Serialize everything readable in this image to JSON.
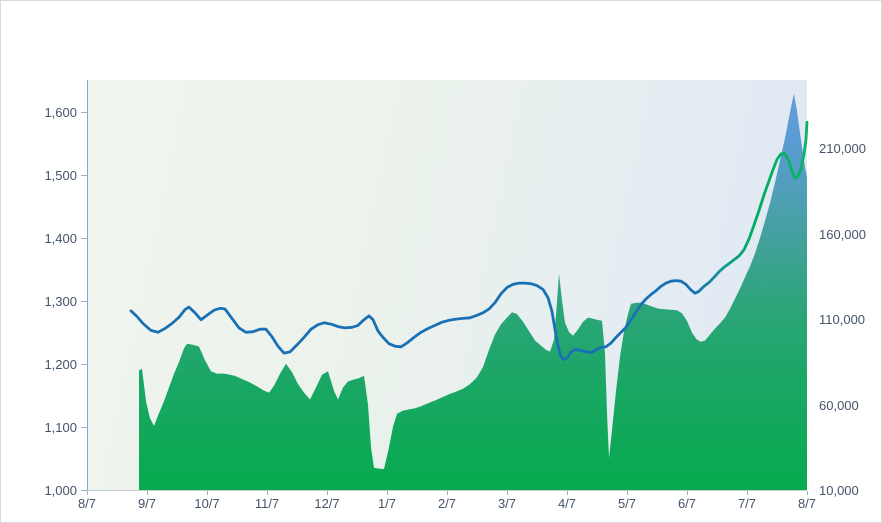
{
  "chart_data": {
    "type": "line+area",
    "title": "",
    "description": "Stock-style chart: price line (left axis) over volume area (right axis), one year span",
    "grid": "off",
    "legend": "none",
    "x_axis": {
      "tick_labels": [
        "8/7",
        "9/7",
        "10/7",
        "11/7",
        "12/7",
        "1/7",
        "2/7",
        "3/7",
        "4/7",
        "5/7",
        "6/7",
        "7/7",
        "8/7"
      ]
    },
    "left_axis": {
      "tick_labels": [
        "1,000",
        "1,100",
        "1,200",
        "1,300",
        "1,400",
        "1,500",
        "1,600"
      ],
      "tick_values": [
        1000,
        1100,
        1200,
        1300,
        1400,
        1500,
        1600
      ],
      "range": [
        1000,
        1650
      ],
      "applies_to": "price-line"
    },
    "right_axis": {
      "tick_labels": [
        "10,000",
        "60,000",
        "110,000",
        "160,000",
        "210,000"
      ],
      "tick_values": [
        10000,
        60000,
        110000,
        160000,
        210000
      ],
      "range": [
        10000,
        250000
      ],
      "applies_to": "volume-area"
    },
    "series": [
      {
        "name": "price-line",
        "type": "line",
        "axis": "left",
        "stroke_width": 2.8,
        "stroke_gradient": [
          [
            0,
            "#1a70b4"
          ],
          [
            0.84,
            "#1a70b4"
          ],
          [
            0.885,
            "#0d9b93"
          ],
          [
            0.92,
            "#00ab63"
          ],
          [
            1,
            "#0eb264"
          ]
        ],
        "points": [
          [
            0.0611,
            1284
          ],
          [
            0.0694,
            1275
          ],
          [
            0.0778,
            1264
          ],
          [
            0.0889,
            1253
          ],
          [
            0.0986,
            1250
          ],
          [
            0.1083,
            1256
          ],
          [
            0.1181,
            1264
          ],
          [
            0.1278,
            1274
          ],
          [
            0.1361,
            1286
          ],
          [
            0.1417,
            1290
          ],
          [
            0.15,
            1281
          ],
          [
            0.1583,
            1270
          ],
          [
            0.1667,
            1277
          ],
          [
            0.1764,
            1285
          ],
          [
            0.1847,
            1288
          ],
          [
            0.1917,
            1287
          ],
          [
            0.2014,
            1272
          ],
          [
            0.2111,
            1257
          ],
          [
            0.2208,
            1250
          ],
          [
            0.2306,
            1251
          ],
          [
            0.2403,
            1255
          ],
          [
            0.2486,
            1255
          ],
          [
            0.2569,
            1243
          ],
          [
            0.2653,
            1228
          ],
          [
            0.2736,
            1217
          ],
          [
            0.2819,
            1219
          ],
          [
            0.2917,
            1230
          ],
          [
            0.3014,
            1242
          ],
          [
            0.3111,
            1255
          ],
          [
            0.3208,
            1262
          ],
          [
            0.3292,
            1265
          ],
          [
            0.3389,
            1263
          ],
          [
            0.3486,
            1259
          ],
          [
            0.3583,
            1257
          ],
          [
            0.3681,
            1258
          ],
          [
            0.3764,
            1261
          ],
          [
            0.3847,
            1270
          ],
          [
            0.3917,
            1276
          ],
          [
            0.3972,
            1270
          ],
          [
            0.4042,
            1252
          ],
          [
            0.4111,
            1242
          ],
          [
            0.4194,
            1232
          ],
          [
            0.4278,
            1228
          ],
          [
            0.4361,
            1227
          ],
          [
            0.4444,
            1233
          ],
          [
            0.4542,
            1242
          ],
          [
            0.4639,
            1250
          ],
          [
            0.4736,
            1256
          ],
          [
            0.4833,
            1261
          ],
          [
            0.4931,
            1266
          ],
          [
            0.5028,
            1269
          ],
          [
            0.5125,
            1271
          ],
          [
            0.5222,
            1272
          ],
          [
            0.5319,
            1273
          ],
          [
            0.5417,
            1277
          ],
          [
            0.55,
            1281
          ],
          [
            0.5583,
            1287
          ],
          [
            0.5667,
            1297
          ],
          [
            0.575,
            1311
          ],
          [
            0.5833,
            1321
          ],
          [
            0.5917,
            1326
          ],
          [
            0.6,
            1328
          ],
          [
            0.6083,
            1328
          ],
          [
            0.6167,
            1327
          ],
          [
            0.625,
            1324
          ],
          [
            0.6333,
            1318
          ],
          [
            0.6403,
            1305
          ],
          [
            0.6458,
            1283
          ],
          [
            0.6514,
            1245
          ],
          [
            0.6569,
            1215
          ],
          [
            0.6611,
            1207
          ],
          [
            0.6667,
            1209
          ],
          [
            0.6722,
            1219
          ],
          [
            0.6792,
            1223
          ],
          [
            0.6861,
            1221
          ],
          [
            0.6931,
            1219
          ],
          [
            0.7,
            1218
          ],
          [
            0.7069,
            1222
          ],
          [
            0.7139,
            1226
          ],
          [
            0.7208,
            1227
          ],
          [
            0.7278,
            1233
          ],
          [
            0.7347,
            1242
          ],
          [
            0.7417,
            1250
          ],
          [
            0.7486,
            1258
          ],
          [
            0.7556,
            1270
          ],
          [
            0.7625,
            1282
          ],
          [
            0.7694,
            1294
          ],
          [
            0.7764,
            1303
          ],
          [
            0.7833,
            1310
          ],
          [
            0.7903,
            1316
          ],
          [
            0.7972,
            1323
          ],
          [
            0.8042,
            1328
          ],
          [
            0.8111,
            1331
          ],
          [
            0.8181,
            1332
          ],
          [
            0.825,
            1331
          ],
          [
            0.8319,
            1326
          ],
          [
            0.8389,
            1317
          ],
          [
            0.8444,
            1312
          ],
          [
            0.85,
            1315
          ],
          [
            0.8569,
            1323
          ],
          [
            0.8639,
            1329
          ],
          [
            0.8708,
            1337
          ],
          [
            0.8778,
            1346
          ],
          [
            0.8847,
            1353
          ],
          [
            0.8917,
            1359
          ],
          [
            0.8986,
            1365
          ],
          [
            0.9056,
            1371
          ],
          [
            0.9125,
            1381
          ],
          [
            0.9194,
            1398
          ],
          [
            0.9264,
            1420
          ],
          [
            0.9333,
            1443
          ],
          [
            0.9403,
            1468
          ],
          [
            0.9472,
            1490
          ],
          [
            0.9528,
            1508
          ],
          [
            0.9583,
            1524
          ],
          [
            0.9639,
            1533
          ],
          [
            0.9694,
            1533
          ],
          [
            0.975,
            1521
          ],
          [
            0.9792,
            1505
          ],
          [
            0.9833,
            1494
          ],
          [
            0.9875,
            1498
          ],
          [
            0.9917,
            1509
          ],
          [
            0.9958,
            1532
          ],
          [
            0.9986,
            1556
          ],
          [
            1.0,
            1583
          ]
        ]
      },
      {
        "name": "volume-area",
        "type": "area",
        "axis": "right",
        "fill_gradient": [
          [
            0,
            "#68a0d8"
          ],
          [
            0.14,
            "#5b9bd5"
          ],
          [
            0.3,
            "#4d9fb2"
          ],
          [
            0.43,
            "#3ea293"
          ],
          [
            0.56,
            "#2ba578"
          ],
          [
            0.74,
            "#1aa765"
          ],
          [
            1,
            "#07aa4e"
          ]
        ],
        "points": [
          [
            0.0722,
            80000
          ],
          [
            0.0764,
            81000
          ],
          [
            0.0819,
            62000
          ],
          [
            0.0875,
            52000
          ],
          [
            0.0931,
            47500
          ],
          [
            0.1,
            55000
          ],
          [
            0.1069,
            62000
          ],
          [
            0.1139,
            70000
          ],
          [
            0.1208,
            78000
          ],
          [
            0.1278,
            85000
          ],
          [
            0.1347,
            93000
          ],
          [
            0.1389,
            95600
          ],
          [
            0.1472,
            95000
          ],
          [
            0.1556,
            94000
          ],
          [
            0.1639,
            86000
          ],
          [
            0.1722,
            79500
          ],
          [
            0.1806,
            78000
          ],
          [
            0.1889,
            78200
          ],
          [
            0.1972,
            77600
          ],
          [
            0.2056,
            76800
          ],
          [
            0.2153,
            75000
          ],
          [
            0.225,
            73200
          ],
          [
            0.2347,
            71000
          ],
          [
            0.2444,
            68500
          ],
          [
            0.2528,
            66900
          ],
          [
            0.2597,
            71000
          ],
          [
            0.2681,
            78000
          ],
          [
            0.2764,
            83900
          ],
          [
            0.2847,
            79000
          ],
          [
            0.2931,
            72000
          ],
          [
            0.3014,
            67000
          ],
          [
            0.3097,
            63000
          ],
          [
            0.3181,
            70000
          ],
          [
            0.3264,
            77500
          ],
          [
            0.3347,
            79500
          ],
          [
            0.3431,
            68000
          ],
          [
            0.3486,
            63000
          ],
          [
            0.3556,
            70000
          ],
          [
            0.3625,
            73500
          ],
          [
            0.3694,
            74500
          ],
          [
            0.3778,
            75500
          ],
          [
            0.3847,
            76900
          ],
          [
            0.3903,
            60000
          ],
          [
            0.3944,
            35000
          ],
          [
            0.3986,
            23000
          ],
          [
            0.4056,
            22500
          ],
          [
            0.4125,
            22300
          ],
          [
            0.4194,
            35000
          ],
          [
            0.425,
            47000
          ],
          [
            0.4306,
            54600
          ],
          [
            0.4389,
            56500
          ],
          [
            0.4472,
            57200
          ],
          [
            0.4556,
            57800
          ],
          [
            0.4639,
            59000
          ],
          [
            0.4736,
            60800
          ],
          [
            0.4833,
            62400
          ],
          [
            0.4931,
            64200
          ],
          [
            0.5028,
            66000
          ],
          [
            0.5125,
            67600
          ],
          [
            0.5222,
            69300
          ],
          [
            0.5319,
            72000
          ],
          [
            0.5417,
            76000
          ],
          [
            0.55,
            82000
          ],
          [
            0.5583,
            92000
          ],
          [
            0.5667,
            101000
          ],
          [
            0.575,
            107000
          ],
          [
            0.5833,
            111000
          ],
          [
            0.5903,
            114000
          ],
          [
            0.5972,
            113000
          ],
          [
            0.6056,
            108500
          ],
          [
            0.6139,
            103000
          ],
          [
            0.6222,
            97500
          ],
          [
            0.6306,
            94500
          ],
          [
            0.6375,
            92000
          ],
          [
            0.6431,
            91000
          ],
          [
            0.6486,
            98000
          ],
          [
            0.6528,
            120000
          ],
          [
            0.6556,
            136700
          ],
          [
            0.6597,
            121000
          ],
          [
            0.6639,
            108000
          ],
          [
            0.6694,
            102500
          ],
          [
            0.675,
            100300
          ],
          [
            0.6819,
            104000
          ],
          [
            0.6889,
            108500
          ],
          [
            0.6958,
            110900
          ],
          [
            0.7028,
            110200
          ],
          [
            0.7097,
            109500
          ],
          [
            0.7153,
            109100
          ],
          [
            0.7194,
            90000
          ],
          [
            0.7222,
            55000
          ],
          [
            0.725,
            28800
          ],
          [
            0.7292,
            45000
          ],
          [
            0.7347,
            68000
          ],
          [
            0.7403,
            88000
          ],
          [
            0.7458,
            103000
          ],
          [
            0.7514,
            113000
          ],
          [
            0.7556,
            119000
          ],
          [
            0.7625,
            119500
          ],
          [
            0.7694,
            119700
          ],
          [
            0.7778,
            118500
          ],
          [
            0.7861,
            117200
          ],
          [
            0.7944,
            116100
          ],
          [
            0.8028,
            115800
          ],
          [
            0.8111,
            115500
          ],
          [
            0.8194,
            115200
          ],
          [
            0.8264,
            113500
          ],
          [
            0.8333,
            109000
          ],
          [
            0.8403,
            102000
          ],
          [
            0.8472,
            98000
          ],
          [
            0.8528,
            96800
          ],
          [
            0.8583,
            97500
          ],
          [
            0.8653,
            101000
          ],
          [
            0.8722,
            104500
          ],
          [
            0.8792,
            107500
          ],
          [
            0.8861,
            111000
          ],
          [
            0.8931,
            116000
          ],
          [
            0.9,
            122000
          ],
          [
            0.9069,
            128000
          ],
          [
            0.9139,
            134500
          ],
          [
            0.9208,
            141000
          ],
          [
            0.9278,
            148500
          ],
          [
            0.9347,
            157500
          ],
          [
            0.9417,
            167500
          ],
          [
            0.9486,
            178000
          ],
          [
            0.9556,
            190000
          ],
          [
            0.9625,
            203000
          ],
          [
            0.9694,
            216000
          ],
          [
            0.975,
            228000
          ],
          [
            0.9792,
            237000
          ],
          [
            0.9819,
            242000
          ],
          [
            0.9861,
            232000
          ],
          [
            0.9903,
            219000
          ],
          [
            0.9944,
            207000
          ],
          [
            0.9972,
            199000
          ],
          [
            1.0,
            193000
          ]
        ]
      }
    ]
  },
  "style": {
    "plot_bg_gradient": [
      "#f0f5ee",
      "#ebf2ec",
      "#e4ecf3",
      "#dde6f2"
    ],
    "left_axis_line_color": "#7da9db",
    "bottom_axis_line_color": "#c6ccd4",
    "tick_mark_color": "#a3adb9",
    "axis_label_color": "#44546a",
    "canvas_border_color": "#d7dadd",
    "canvas_bg": "#ffffff"
  }
}
